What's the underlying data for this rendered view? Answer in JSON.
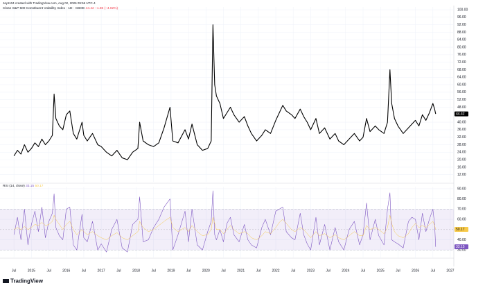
{
  "header": {
    "attribution": "Jay1104 created with TradingView.com, Aug 02, 2026 09:56 UTC-4"
  },
  "footer": {
    "brand": "TradingView"
  },
  "chart_data": [
    {
      "type": "line",
      "legend_prefix": "Close",
      "title": "S&P 500 Constituent Volatility Index · 1D · CBOE",
      "change": "−1.86 (−4.02%)",
      "color": "#000000",
      "change_color": "#f23645",
      "x": [
        2014.5,
        2014.6,
        2014.7,
        2014.8,
        2014.9,
        2015.0,
        2015.1,
        2015.2,
        2015.3,
        2015.4,
        2015.5,
        2015.6,
        2015.65,
        2015.7,
        2015.8,
        2015.9,
        2016.0,
        2016.1,
        2016.2,
        2016.3,
        2016.45,
        2016.5,
        2016.6,
        2016.75,
        2016.9,
        2017.0,
        2017.15,
        2017.3,
        2017.45,
        2017.6,
        2017.75,
        2017.9,
        2018.05,
        2018.1,
        2018.2,
        2018.35,
        2018.5,
        2018.65,
        2018.8,
        2018.97,
        2019.05,
        2019.2,
        2019.4,
        2019.5,
        2019.6,
        2019.75,
        2019.9,
        2020.05,
        2020.15,
        2020.2,
        2020.25,
        2020.3,
        2020.4,
        2020.5,
        2020.6,
        2020.7,
        2020.8,
        2020.95,
        2021.1,
        2021.2,
        2021.3,
        2021.45,
        2021.6,
        2021.7,
        2021.85,
        2022.0,
        2022.1,
        2022.2,
        2022.3,
        2022.45,
        2022.55,
        2022.7,
        2022.8,
        2022.9,
        2023.0,
        2023.15,
        2023.25,
        2023.4,
        2023.55,
        2023.7,
        2023.8,
        2023.95,
        2024.1,
        2024.25,
        2024.4,
        2024.5,
        2024.6,
        2024.7,
        2024.85,
        2024.95,
        2025.1,
        2025.2,
        2025.27,
        2025.32,
        2025.4,
        2025.5,
        2025.65,
        2025.8,
        2025.9,
        2026.0,
        2026.1,
        2026.2,
        2026.3,
        2026.4,
        2026.5,
        2026.55,
        2026.58
      ],
      "values": [
        22,
        25,
        23,
        28,
        24,
        26,
        29,
        27,
        31,
        28,
        30,
        33,
        55,
        42,
        38,
        36,
        44,
        46,
        34,
        31,
        40,
        33,
        30,
        34,
        28,
        27,
        24,
        22,
        25,
        21,
        20,
        24,
        26,
        40,
        30,
        28,
        27,
        29,
        37,
        48,
        30,
        29,
        36,
        31,
        39,
        28,
        25,
        26,
        30,
        92,
        60,
        54,
        50,
        42,
        45,
        48,
        44,
        40,
        43,
        38,
        34,
        30,
        33,
        36,
        34,
        41,
        45,
        49,
        46,
        44,
        42,
        47,
        43,
        40,
        36,
        42,
        34,
        37,
        31,
        34,
        30,
        28,
        31,
        34,
        30,
        32,
        42,
        35,
        38,
        36,
        34,
        40,
        68,
        50,
        42,
        38,
        34,
        37,
        39,
        41,
        38,
        44,
        41,
        45,
        50,
        47,
        44.42
      ],
      "xlim": [
        2014.1,
        2027.1
      ],
      "ylim": [
        8.2,
        101.5
      ],
      "yticks": [
        {
          "value": 12,
          "label": "12.00"
        },
        {
          "value": 16,
          "label": "16.00"
        },
        {
          "value": 20,
          "label": "20.00"
        },
        {
          "value": 24,
          "label": "24.00"
        },
        {
          "value": 28,
          "label": "28.00"
        },
        {
          "value": 32,
          "label": "32.00"
        },
        {
          "value": 36,
          "label": "36.00"
        },
        {
          "value": 40,
          "label": "40.00"
        },
        {
          "value": 48,
          "label": "48.00"
        },
        {
          "value": 52,
          "label": "52.00"
        },
        {
          "value": 56,
          "label": "56.00"
        },
        {
          "value": 60,
          "label": "60.00"
        },
        {
          "value": 64,
          "label": "64.00"
        },
        {
          "value": 68,
          "label": "68.00"
        },
        {
          "value": 72,
          "label": "72.00"
        },
        {
          "value": 76,
          "label": "76.00"
        },
        {
          "value": 80,
          "label": "80.00"
        },
        {
          "value": 84,
          "label": "84.00"
        },
        {
          "value": 88,
          "label": "88.00"
        },
        {
          "value": 92,
          "label": "92.00"
        },
        {
          "value": 96,
          "label": "96.00"
        },
        {
          "value": 100,
          "label": "100.00"
        }
      ],
      "grid": true
    },
    {
      "type": "line",
      "title": "RSI (14, close)",
      "x": [
        2014.5,
        2014.6,
        2014.7,
        2014.8,
        2014.9,
        2015.0,
        2015.1,
        2015.2,
        2015.3,
        2015.4,
        2015.5,
        2015.6,
        2015.65,
        2015.7,
        2015.8,
        2015.9,
        2016.0,
        2016.1,
        2016.2,
        2016.3,
        2016.45,
        2016.5,
        2016.6,
        2016.75,
        2016.9,
        2017.0,
        2017.15,
        2017.3,
        2017.45,
        2017.6,
        2017.75,
        2017.9,
        2018.05,
        2018.1,
        2018.2,
        2018.35,
        2018.5,
        2018.65,
        2018.8,
        2018.97,
        2019.05,
        2019.2,
        2019.4,
        2019.5,
        2019.6,
        2019.75,
        2019.9,
        2020.05,
        2020.15,
        2020.2,
        2020.25,
        2020.3,
        2020.4,
        2020.5,
        2020.6,
        2020.7,
        2020.8,
        2020.95,
        2021.1,
        2021.2,
        2021.3,
        2021.45,
        2021.6,
        2021.7,
        2021.85,
        2022.0,
        2022.1,
        2022.2,
        2022.3,
        2022.45,
        2022.55,
        2022.7,
        2022.8,
        2022.9,
        2023.0,
        2023.15,
        2023.25,
        2023.4,
        2023.55,
        2023.7,
        2023.8,
        2023.95,
        2024.1,
        2024.25,
        2024.4,
        2024.5,
        2024.6,
        2024.7,
        2024.85,
        2024.95,
        2025.1,
        2025.2,
        2025.27,
        2025.32,
        2025.4,
        2025.5,
        2025.65,
        2025.8,
        2025.9,
        2026.0,
        2026.1,
        2026.2,
        2026.3,
        2026.4,
        2026.5,
        2026.55,
        2026.58
      ],
      "series": [
        {
          "color": "#7e57c2",
          "values": [
            45,
            62,
            40,
            70,
            35,
            55,
            68,
            48,
            72,
            42,
            58,
            66,
            85,
            52,
            44,
            40,
            70,
            72,
            35,
            30,
            65,
            42,
            38,
            58,
            30,
            36,
            28,
            50,
            60,
            32,
            28,
            55,
            60,
            82,
            38,
            40,
            52,
            60,
            72,
            80,
            30,
            45,
            68,
            38,
            70,
            35,
            30,
            48,
            58,
            88,
            45,
            40,
            50,
            38,
            56,
            62,
            45,
            38,
            55,
            40,
            35,
            32,
            52,
            60,
            45,
            68,
            70,
            72,
            48,
            42,
            40,
            66,
            45,
            36,
            30,
            62,
            35,
            55,
            30,
            52,
            38,
            30,
            50,
            58,
            35,
            45,
            76,
            40,
            60,
            44,
            35,
            70,
            86,
            40,
            38,
            36,
            32,
            58,
            62,
            60,
            40,
            66,
            48,
            60,
            70,
            55,
            33.15
          ]
        },
        {
          "color": "#f7c948",
          "values": [
            50,
            52,
            50,
            53,
            50,
            52,
            55,
            54,
            57,
            54,
            55,
            58,
            64,
            60,
            55,
            50,
            55,
            58,
            50,
            45,
            50,
            48,
            45,
            48,
            44,
            42,
            40,
            44,
            47,
            42,
            40,
            44,
            48,
            58,
            52,
            48,
            50,
            54,
            58,
            62,
            52,
            48,
            52,
            48,
            54,
            48,
            44,
            45,
            50,
            62,
            56,
            50,
            50,
            46,
            50,
            54,
            50,
            46,
            48,
            46,
            42,
            40,
            44,
            48,
            46,
            52,
            57,
            60,
            56,
            50,
            48,
            52,
            50,
            46,
            42,
            48,
            44,
            46,
            42,
            45,
            42,
            40,
            44,
            48,
            44,
            44,
            54,
            50,
            52,
            50,
            46,
            52,
            64,
            56,
            48,
            44,
            42,
            46,
            52,
            56,
            52,
            54,
            52,
            55,
            58,
            54,
            50.17
          ]
        }
      ],
      "bands": {
        "upper": 70,
        "middle": 50,
        "lower": 30
      },
      "band_color": "#7e57c2",
      "xlim": [
        2014.1,
        2027.1
      ],
      "ylim": [
        22,
        92
      ],
      "yticks": [
        {
          "value": 30,
          "label": "30.00"
        },
        {
          "value": 40,
          "label": "40.00"
        },
        {
          "value": 60,
          "label": "60.00"
        },
        {
          "value": 70,
          "label": "70.00"
        },
        {
          "value": 80,
          "label": "80.00"
        },
        {
          "value": 90,
          "label": "90.00"
        }
      ],
      "xticks": [
        {
          "value": 2014.5,
          "label": "Jul"
        },
        {
          "value": 2015,
          "label": "2015"
        },
        {
          "value": 2015.5,
          "label": "Jul"
        },
        {
          "value": 2016,
          "label": "2016"
        },
        {
          "value": 2016.5,
          "label": "Jul"
        },
        {
          "value": 2017,
          "label": "2017"
        },
        {
          "value": 2017.5,
          "label": "Jul"
        },
        {
          "value": 2018,
          "label": "2018"
        },
        {
          "value": 2018.5,
          "label": "Jul"
        },
        {
          "value": 2019,
          "label": "2019"
        },
        {
          "value": 2019.5,
          "label": "Jul"
        },
        {
          "value": 2020,
          "label": "2020"
        },
        {
          "value": 2020.5,
          "label": "Jul"
        },
        {
          "value": 2021,
          "label": "2021"
        },
        {
          "value": 2021.5,
          "label": "Jul"
        },
        {
          "value": 2022,
          "label": "2022"
        },
        {
          "value": 2022.5,
          "label": "Jul"
        },
        {
          "value": 2023,
          "label": "2023"
        },
        {
          "value": 2023.5,
          "label": "Jul"
        },
        {
          "value": 2024,
          "label": "2024"
        },
        {
          "value": 2024.5,
          "label": "Jul"
        },
        {
          "value": 2025,
          "label": "2025"
        },
        {
          "value": 2025.5,
          "label": "Jul"
        },
        {
          "value": 2026,
          "label": "2026"
        },
        {
          "value": 2026.5,
          "label": "Jul"
        },
        {
          "value": 2027,
          "label": "2027"
        }
      ],
      "grid": true
    }
  ]
}
